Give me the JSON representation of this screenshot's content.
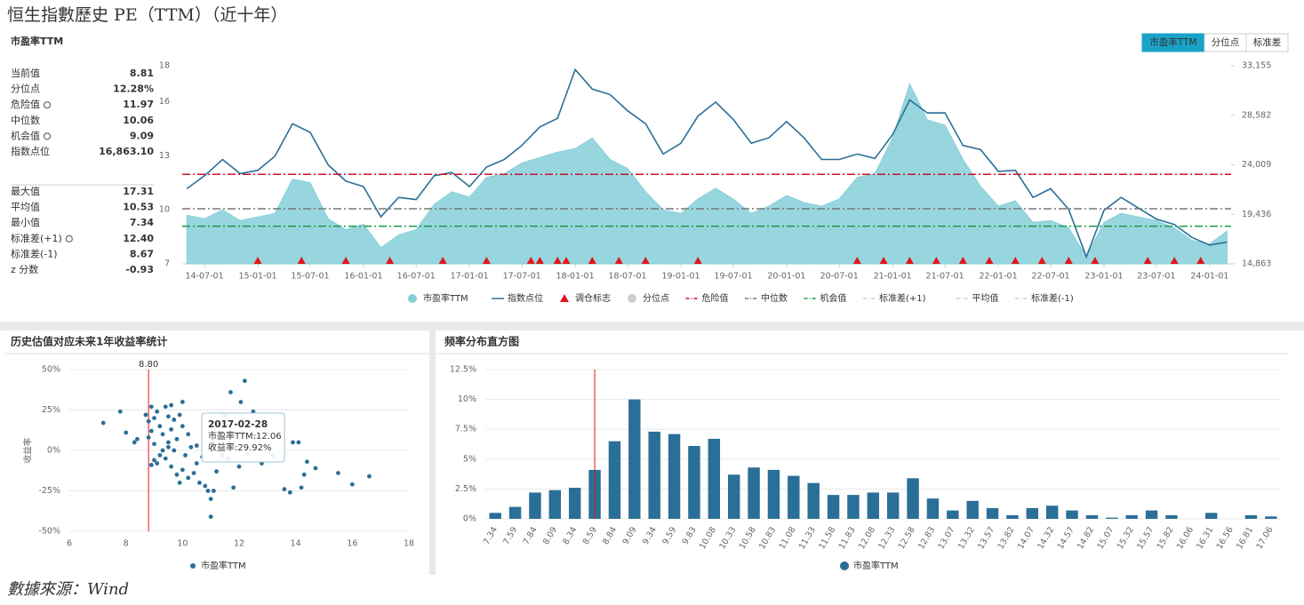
{
  "title": "恒生指數歷史 PE（TTM）（近十年）",
  "panel_title": "市盈率TTM",
  "tabs": [
    "市盈率TTM",
    "分位点",
    "标准差"
  ],
  "stats": [
    [
      {
        "label": "当前值",
        "value": "8.81"
      },
      {
        "label": "分位点",
        "value": "12.28%"
      },
      {
        "label": "危险值",
        "value": "11.97",
        "gear": true
      },
      {
        "label": "中位数",
        "value": "10.06"
      },
      {
        "label": "机会值",
        "value": "9.09",
        "gear": true
      },
      {
        "label": "指数点位",
        "value": "16,863.10"
      }
    ],
    [
      {
        "label": "最大值",
        "value": "17.31"
      },
      {
        "label": "平均值",
        "value": "10.53"
      },
      {
        "label": "最小值",
        "value": "7.34"
      },
      {
        "label": "标准差(+1)",
        "value": "12.40",
        "gear": true
      },
      {
        "label": "标准差(-1)",
        "value": "8.67"
      },
      {
        "label": "z 分数",
        "value": "-0.93"
      }
    ]
  ],
  "scatter_title": "历史估值对应未来1年收益率统计",
  "hist_title": "频率分布直方图",
  "source": "數據來源：Wind",
  "chart_data": [
    {
      "type": "line",
      "x": [
        "2014-05-01",
        "2014-07-01",
        "2014-09-01",
        "2014-11-01",
        "2015-01-01",
        "2015-03-01",
        "2015-05-01",
        "2015-07-01",
        "2015-09-01",
        "2015-11-01",
        "2016-01-01",
        "2016-03-01",
        "2016-05-01",
        "2016-07-01",
        "2016-09-01",
        "2016-11-01",
        "2017-01-01",
        "2017-03-01",
        "2017-05-01",
        "2017-07-01",
        "2017-09-01",
        "2017-11-01",
        "2018-01-01",
        "2018-03-01",
        "2018-05-01",
        "2018-07-01",
        "2018-09-01",
        "2018-11-01",
        "2019-01-01",
        "2019-03-01",
        "2019-05-01",
        "2019-07-01",
        "2019-09-01",
        "2019-11-01",
        "2020-01-01",
        "2020-03-01",
        "2020-05-01",
        "2020-07-01",
        "2020-09-01",
        "2020-11-01",
        "2021-01-01",
        "2021-03-01",
        "2021-05-01",
        "2021-07-01",
        "2021-09-01",
        "2021-11-01",
        "2022-01-01",
        "2022-03-01",
        "2022-05-01",
        "2022-07-01",
        "2022-09-01",
        "2022-11-01",
        "2023-01-01",
        "2023-03-01",
        "2023-05-01",
        "2023-07-01",
        "2023-09-01",
        "2023-11-01",
        "2024-01-01",
        "2024-03-01"
      ],
      "xlim": [
        "2014-04-15",
        "2024-03-15"
      ],
      "xticks": [
        {
          "value": "2014-07-01",
          "label": "14-07-01"
        },
        {
          "value": "2015-01-01",
          "label": "15-01-01"
        },
        {
          "value": "2015-07-01",
          "label": "15-07-01"
        },
        {
          "value": "2016-01-01",
          "label": "16-01-01"
        },
        {
          "value": "2016-07-01",
          "label": "16-07-01"
        },
        {
          "value": "2017-01-01",
          "label": "17-01-01"
        },
        {
          "value": "2017-07-01",
          "label": "17-07-01"
        },
        {
          "value": "2018-01-01",
          "label": "18-01-01"
        },
        {
          "value": "2018-07-01",
          "label": "18-07-01"
        },
        {
          "value": "2019-01-01",
          "label": "19-01-01"
        },
        {
          "value": "2019-07-01",
          "label": "19-07-01"
        },
        {
          "value": "2020-01-01",
          "label": "20-01-01"
        },
        {
          "value": "2020-07-01",
          "label": "20-07-01"
        },
        {
          "value": "2021-01-01",
          "label": "21-01-01"
        },
        {
          "value": "2021-07-01",
          "label": "21-07-01"
        },
        {
          "value": "2022-01-01",
          "label": "22-01-01"
        },
        {
          "value": "2022-07-01",
          "label": "22-07-01"
        },
        {
          "value": "2023-01-01",
          "label": "23-01-01"
        },
        {
          "value": "2023-07-01",
          "label": "23-07-01"
        },
        {
          "value": "2024-01-01",
          "label": "24-01-01"
        }
      ],
      "ylim": [
        7,
        18
      ],
      "yticks": [
        7,
        10,
        13,
        16,
        18
      ],
      "y2lim": [
        14863,
        33155
      ],
      "y2ticks": [
        {
          "value": 14863,
          "label": "14,863"
        },
        {
          "value": 19436,
          "label": "19,436"
        },
        {
          "value": 24009,
          "label": "24,009"
        },
        {
          "value": 28582,
          "label": "28,582"
        },
        {
          "value": 33155,
          "label": "33,155"
        }
      ],
      "series": [
        {
          "name": "市盈率TTM",
          "color": "#86cfd9",
          "style": "area",
          "values": [
            9.7,
            9.5,
            10.0,
            9.4,
            9.6,
            9.8,
            11.7,
            11.5,
            9.5,
            8.9,
            9.2,
            7.9,
            8.6,
            8.9,
            10.3,
            11.0,
            10.7,
            11.8,
            12.0,
            12.6,
            12.9,
            13.2,
            13.4,
            14.0,
            12.8,
            12.3,
            11.0,
            10.0,
            9.8,
            10.6,
            11.2,
            10.6,
            9.8,
            10.2,
            10.8,
            10.4,
            10.2,
            10.6,
            11.8,
            12.0,
            14.0,
            17.0,
            15.0,
            14.7,
            12.8,
            11.3,
            10.2,
            10.5,
            9.3,
            9.4,
            9.0,
            7.4,
            9.3,
            9.8,
            9.6,
            9.4,
            9.0,
            8.3,
            8.1,
            8.81
          ]
        },
        {
          "name": "指数点位",
          "color": "#2a6f97",
          "axis": "y2",
          "values": [
            21800,
            23000,
            24500,
            23200,
            23500,
            24800,
            27800,
            27000,
            24000,
            22500,
            22000,
            19200,
            21000,
            20800,
            23000,
            23300,
            22000,
            23800,
            24500,
            25800,
            27500,
            28300,
            32800,
            31000,
            30500,
            29000,
            27800,
            25000,
            26000,
            28500,
            29800,
            28200,
            26000,
            26500,
            28000,
            26500,
            24500,
            24500,
            25000,
            24600,
            26800,
            30000,
            28800,
            28800,
            25800,
            25400,
            23400,
            23500,
            21000,
            21800,
            19900,
            15500,
            19800,
            21000,
            20000,
            19000,
            18500,
            17300,
            16600,
            16863.1
          ]
        }
      ],
      "rebalance": {
        "name": "调仓标志",
        "color": "#e3141c",
        "x": [
          "2015-01-01",
          "2015-06-01",
          "2015-11-01",
          "2016-04-01",
          "2016-10-01",
          "2017-03-01",
          "2017-08-01",
          "2017-09-01",
          "2017-11-01",
          "2017-12-01",
          "2018-03-01",
          "2018-06-01",
          "2018-09-01",
          "2019-03-01",
          "2020-09-01",
          "2020-12-01",
          "2021-03-01",
          "2021-06-01",
          "2021-09-01",
          "2021-12-01",
          "2022-03-01",
          "2022-06-01",
          "2022-09-01",
          "2022-12-01",
          "2023-06-01",
          "2023-09-01",
          "2023-12-01"
        ]
      },
      "reference_lines": [
        {
          "name": "危险值",
          "value": 11.97,
          "color": "#c8102e"
        },
        {
          "name": "中位数",
          "value": 10.06,
          "color": "#777777"
        },
        {
          "name": "机会值",
          "value": 9.09,
          "color": "#1a9a4a"
        }
      ],
      "disabled_legend": [
        "分位点",
        "标准差(+1)",
        "平均值",
        "标准差(-1)"
      ]
    },
    {
      "type": "scatter",
      "xlim": [
        6,
        18
      ],
      "xticks": [
        6,
        8,
        10,
        12,
        14,
        16,
        18
      ],
      "ylim": [
        -50,
        50
      ],
      "yticks": [
        {
          "value": -50,
          "label": "-50%"
        },
        {
          "value": -25,
          "label": "-25%"
        },
        {
          "value": 0,
          "label": "0%"
        },
        {
          "value": 25,
          "label": "25%"
        },
        {
          "value": 50,
          "label": "50%"
        }
      ],
      "ylabel": "收益率",
      "grid": true,
      "series": [
        {
          "name": "市盈率TTM",
          "color": "#2a6f97",
          "x": [
            7.2,
            7.8,
            8.0,
            8.3,
            8.4,
            8.7,
            8.8,
            8.9,
            8.9,
            9.0,
            9.1,
            9.0,
            9.2,
            9.3,
            9.4,
            9.5,
            9.5,
            9.6,
            9.7,
            9.7,
            9.8,
            9.9,
            10.0,
            10.1,
            10.2,
            8.9,
            9.1,
            9.3,
            9.4,
            9.5,
            9.6,
            9.8,
            9.9,
            10.0,
            10.2,
            10.4,
            10.5,
            10.6,
            10.7,
            10.8,
            10.9,
            11.0,
            11.0,
            11.1,
            11.2,
            11.4,
            11.5,
            11.5,
            11.6,
            11.7,
            11.8,
            12.0,
            12.1,
            12.2,
            12.3,
            12.5,
            12.6,
            12.8,
            13.0,
            13.2,
            13.6,
            13.8,
            13.9,
            14.1,
            14.2,
            14.3,
            14.4,
            14.7,
            15.5,
            16.0,
            16.6,
            12.06,
            10.3,
            9.2,
            8.8,
            10.5,
            9.0,
            10.0,
            9.6
          ],
          "values": [
            17,
            24,
            11,
            5,
            7,
            22,
            18,
            27,
            12,
            20,
            24,
            4,
            15,
            10,
            27,
            21,
            5,
            13,
            0,
            19,
            7,
            22,
            15,
            -3,
            10,
            -9,
            -8,
            0,
            -5,
            2,
            -10,
            -15,
            -20,
            -12,
            -17,
            -14,
            -8,
            -20,
            -4,
            -22,
            -25,
            -30,
            -41,
            -25,
            -13,
            -3,
            8,
            22,
            -5,
            36,
            -23,
            -10,
            19,
            43,
            -2,
            24,
            8,
            -8,
            10,
            -3,
            -24,
            -26,
            5,
            5,
            -23,
            -15,
            -7,
            -11,
            -14,
            -21,
            -16,
            29.92,
            2,
            -3,
            8,
            3,
            -6,
            30,
            28
          ]
        }
      ],
      "vline": {
        "value": 8.8,
        "label": "8.80",
        "color": "#e3141c"
      },
      "tooltip": {
        "title": "2017-02-28",
        "pe": "市盈率TTM:12.06",
        "return_label": "收益率:",
        "return_value": "29.92%"
      }
    },
    {
      "type": "bar",
      "categories": [
        "7.34",
        "7.59",
        "7.84",
        "8.09",
        "8.34",
        "8.59",
        "8.84",
        "9.09",
        "9.34",
        "9.59",
        "9.83",
        "10.08",
        "10.33",
        "10.58",
        "10.83",
        "11.08",
        "11.33",
        "11.58",
        "11.83",
        "12.08",
        "12.33",
        "12.58",
        "12.83",
        "13.07",
        "13.32",
        "13.57",
        "13.82",
        "14.07",
        "14.32",
        "14.57",
        "14.82",
        "15.07",
        "15.32",
        "15.57",
        "15.82",
        "16.06",
        "16.31",
        "16.56",
        "16.81",
        "17.06"
      ],
      "series": [
        {
          "name": "市盈率TTM",
          "color": "#2a6f97",
          "values": [
            0.5,
            1.0,
            2.2,
            2.4,
            2.6,
            4.1,
            6.5,
            10.0,
            7.3,
            7.1,
            6.1,
            6.7,
            3.7,
            4.3,
            4.1,
            3.6,
            3.0,
            2.0,
            2.0,
            2.2,
            2.2,
            3.4,
            1.7,
            0.7,
            1.5,
            0.9,
            0.3,
            0.9,
            1.1,
            0.7,
            0.3,
            0.1,
            0.3,
            0.7,
            0.3,
            0,
            0.5,
            0,
            0.3,
            0.2
          ]
        }
      ],
      "ylim": [
        0,
        12.5
      ],
      "yticks": [
        {
          "value": 0,
          "label": "0%"
        },
        {
          "value": 2.5,
          "label": "2.5%"
        },
        {
          "value": 5,
          "label": "5%"
        },
        {
          "value": 7.5,
          "label": "7.5%"
        },
        {
          "value": 10,
          "label": "10%"
        },
        {
          "value": 12.5,
          "label": "12.5%"
        }
      ],
      "grid": true,
      "marker": {
        "value": 8.81,
        "color": "#e3141c"
      }
    }
  ]
}
